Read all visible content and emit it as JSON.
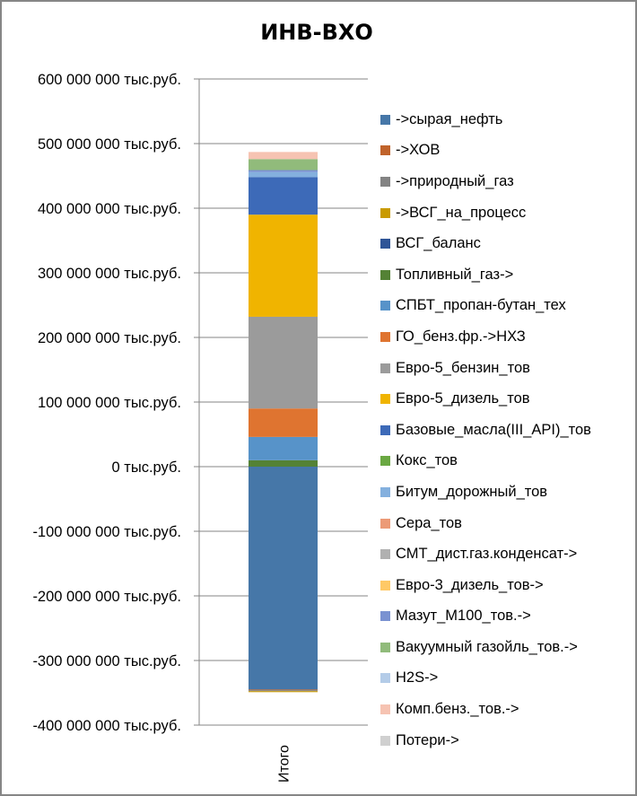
{
  "chart_data": {
    "type": "bar",
    "stacked": true,
    "title": "ИНВ-ВХО",
    "xlabel": "",
    "ylabel": "",
    "categories": [
      "Итого"
    ],
    "ylim": [
      -400000000,
      600000000
    ],
    "ytick_step": 100000000,
    "ytick_labels": [
      "600 000 000 тыс.руб.",
      "500 000 000 тыс.руб.",
      "400 000 000 тыс.руб.",
      "300 000 000 тыс.руб.",
      "200 000 000 тыс.руб.",
      "100 000 000 тыс.руб.",
      "0 тыс.руб.",
      "-100 000 000 тыс.руб.",
      "-200 000 000 тыс.руб.",
      "-300 000 000 тыс.руб.",
      "-400 000 000 тыс.руб."
    ],
    "grid": true,
    "legend_position": "right",
    "series": [
      {
        "name": "->сырая_нефть",
        "color": "#4677a8",
        "values": [
          -345000000
        ]
      },
      {
        "name": "->ХОВ",
        "color": "#c0632b",
        "values": [
          -1000000
        ]
      },
      {
        "name": "->природный_газ",
        "color": "#838383",
        "values": [
          -1500000
        ]
      },
      {
        "name": "->ВСГ_на_процесс",
        "color": "#c99a00",
        "values": [
          -1500000
        ]
      },
      {
        "name": "ВСГ_баланс",
        "color": "#2f5597",
        "values": [
          0
        ]
      },
      {
        "name": "Топливный_газ->",
        "color": "#548235",
        "values": [
          10000000
        ]
      },
      {
        "name": "СПБТ_пропан-бутан_тех",
        "color": "#5793c9",
        "values": [
          36000000
        ]
      },
      {
        "name": "ГО_бенз.фр.->НХЗ",
        "color": "#df7430",
        "values": [
          44000000
        ]
      },
      {
        "name": "Евро-5_бензин_тов",
        "color": "#9b9b9b",
        "values": [
          142000000
        ]
      },
      {
        "name": "Евро-5_дизель_тов",
        "color": "#f0b400",
        "values": [
          158000000
        ]
      },
      {
        "name": "Базовые_масла(III_API)_тов",
        "color": "#3d6ab8",
        "values": [
          58000000
        ]
      },
      {
        "name": "Кокс_тов",
        "color": "#6aa842",
        "values": [
          0
        ]
      },
      {
        "name": "Битум_дорожный_тов",
        "color": "#84b0de",
        "values": [
          8000000
        ]
      },
      {
        "name": "Сера_тов",
        "color": "#ec9a76",
        "values": [
          0
        ]
      },
      {
        "name": "СМТ_дист.газ.конденсат->",
        "color": "#b0b0b0",
        "values": [
          0
        ]
      },
      {
        "name": "Евро-3_дизель_тов->",
        "color": "#ffc966",
        "values": [
          0
        ]
      },
      {
        "name": "Мазут_М100_тов.->",
        "color": "#7a92d1",
        "values": [
          3000000
        ]
      },
      {
        "name": "Вакуумный газойль_тов.->",
        "color": "#91bb7b",
        "values": [
          17000000
        ]
      },
      {
        "name": "H2S->",
        "color": "#b4cce8",
        "values": [
          0
        ]
      },
      {
        "name": "Комп.бенз._тов.->",
        "color": "#f6c3b2",
        "values": [
          11000000
        ]
      },
      {
        "name": "Потери->",
        "color": "#d0d0d0",
        "values": [
          0
        ]
      }
    ]
  }
}
